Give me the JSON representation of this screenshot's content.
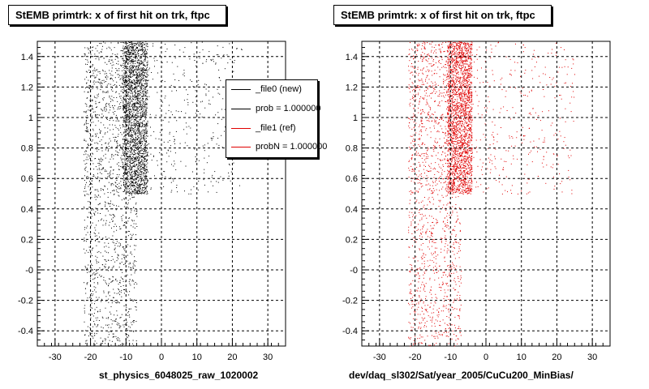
{
  "colors": {
    "series_new": "#000000",
    "series_ref": "#e00000",
    "grid": "#000000"
  },
  "panels": [
    {
      "title": "StEMB primtrk: x of first hit on trk, ftpc",
      "xlabel": "st_physics_6048025_raw_1020002"
    },
    {
      "title": "StEMB primtrk: x of first hit on trk, ftpc",
      "xlabel": "dev/daq_sl302/Sat/year_2005/CuCu200_MinBias/"
    }
  ],
  "legend": {
    "entries": [
      {
        "label": "_file0 (new)",
        "color": "#000000"
      },
      {
        "label": "prob = 1.000000",
        "color": "#000000"
      },
      {
        "label": "_file1 (ref)",
        "color": "#e00000"
      },
      {
        "label": "probN = 1.000000",
        "color": "#e00000"
      }
    ]
  },
  "chart_data": [
    {
      "type": "scatter",
      "title": "StEMB primtrk: x of first hit on trk, ftpc",
      "xlabel": "st_physics_6048025_raw_1020002",
      "ylabel": "",
      "xlim": [
        -35,
        35
      ],
      "ylim": [
        -0.5,
        1.5
      ],
      "xticks": [
        "-30",
        "-20",
        "-10",
        "0",
        "10",
        "20",
        "30"
      ],
      "yticks": [
        "-0.4",
        "-0.2",
        "-0",
        "0.2",
        "0.4",
        "0.6",
        "0.8",
        "1",
        "1.2",
        "1.4"
      ],
      "grid": true,
      "legend_position": "top-right",
      "series": [
        {
          "name": "_file0 (new)",
          "color": "#000000",
          "regions": [
            {
              "x": [
                -11,
                -4
              ],
              "y": [
                0.5,
                1.5
              ],
              "density": "high"
            },
            {
              "x": [
                -22,
                -11
              ],
              "y": [
                0.5,
                1.5
              ],
              "density": "medium"
            },
            {
              "x": [
                -4,
                23
              ],
              "y": [
                0.5,
                1.5
              ],
              "density": "low"
            },
            {
              "x": [
                -22,
                -7
              ],
              "y": [
                -0.5,
                0.5
              ],
              "density": "medium"
            }
          ]
        }
      ]
    },
    {
      "type": "scatter",
      "title": "StEMB primtrk: x of first hit on trk, ftpc",
      "xlabel": "dev/daq_sl302/Sat/year_2005/CuCu200_MinBias/",
      "ylabel": "",
      "xlim": [
        -35,
        35
      ],
      "ylim": [
        -0.5,
        1.5
      ],
      "xticks": [
        "-30",
        "-20",
        "-10",
        "0",
        "10",
        "20",
        "30"
      ],
      "yticks": [
        "-0.4",
        "-0.2",
        "-0",
        "0.2",
        "0.4",
        "0.6",
        "0.8",
        "1",
        "1.2",
        "1.4"
      ],
      "grid": true,
      "series": [
        {
          "name": "_file1 (ref)",
          "color": "#e00000",
          "regions": [
            {
              "x": [
                -11,
                -4
              ],
              "y": [
                0.5,
                1.5
              ],
              "density": "high"
            },
            {
              "x": [
                -22,
                -11
              ],
              "y": [
                0.5,
                1.5
              ],
              "density": "medium"
            },
            {
              "x": [
                -4,
                25
              ],
              "y": [
                0.5,
                1.5
              ],
              "density": "low"
            },
            {
              "x": [
                -22,
                -7
              ],
              "y": [
                -0.5,
                0.5
              ],
              "density": "medium"
            }
          ]
        }
      ]
    }
  ]
}
